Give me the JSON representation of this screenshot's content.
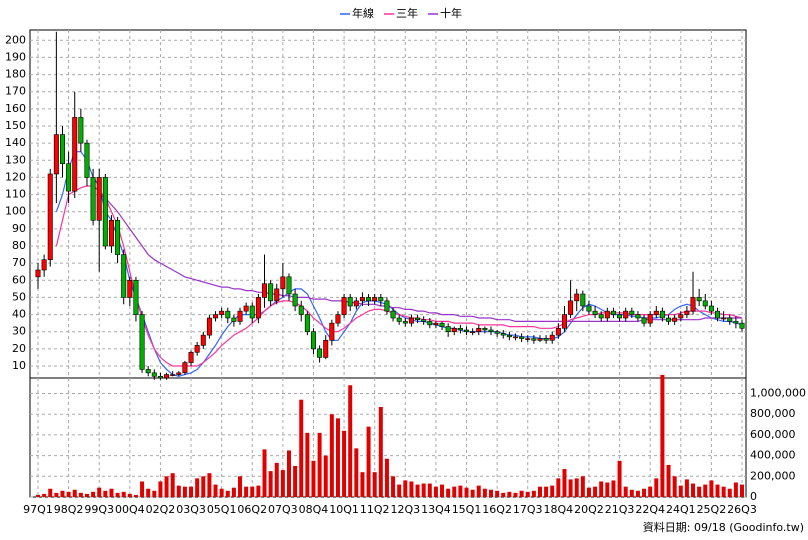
{
  "chart_data": {
    "type": "candlestick",
    "categories": [
      "97Q1",
      null,
      null,
      null,
      null,
      "98Q2",
      null,
      null,
      null,
      null,
      "99Q3",
      null,
      null,
      null,
      null,
      "00Q4",
      null,
      null,
      null,
      null,
      "02Q2",
      null,
      null,
      null,
      null,
      "03Q3",
      null,
      null,
      null,
      null,
      "05Q1",
      null,
      null,
      null,
      null,
      "06Q2",
      null,
      null,
      null,
      null,
      "07Q3",
      null,
      null,
      null,
      null,
      "08Q4",
      null,
      null,
      null,
      null,
      "10Q1",
      null,
      null,
      null,
      null,
      "11Q2",
      null,
      null,
      null,
      null,
      "12Q3",
      null,
      null,
      null,
      null,
      "13Q4",
      null,
      null,
      null,
      null,
      "15Q1",
      null,
      null,
      null,
      null,
      "16Q2",
      null,
      null,
      null,
      null,
      "17Q3",
      null,
      null,
      null,
      null,
      "18Q4",
      null,
      null,
      null,
      null,
      "20Q2",
      null,
      null,
      null,
      null,
      "21Q3",
      null,
      null,
      null,
      null,
      "22Q4",
      null,
      null,
      null,
      null,
      "24Q1",
      null,
      null,
      null,
      null,
      "25Q2",
      null,
      null,
      null,
      null,
      "26Q3"
    ],
    "open": [
      62,
      66,
      72,
      122,
      145,
      128,
      112,
      155,
      140,
      120,
      95,
      120,
      80,
      95,
      75,
      50,
      60,
      40,
      8,
      6,
      4,
      3,
      5,
      5,
      6,
      12,
      18,
      22,
      28,
      38,
      40,
      42,
      38,
      36,
      42,
      45,
      38,
      50,
      58,
      48,
      55,
      62,
      52,
      45,
      40,
      30,
      20,
      15,
      25,
      35,
      40,
      50,
      45,
      48,
      50,
      48,
      50,
      48,
      42,
      38,
      36,
      35,
      38,
      37,
      36,
      34,
      35,
      33,
      30,
      32,
      31,
      30,
      30,
      32,
      31,
      30,
      29,
      28,
      27,
      27,
      26,
      26,
      25,
      26,
      25,
      28,
      32,
      40,
      48,
      52,
      45,
      42,
      40,
      38,
      42,
      40,
      38,
      42,
      40,
      38,
      35,
      40,
      42,
      38,
      36,
      38,
      40,
      42,
      50,
      48,
      45,
      42,
      38,
      38,
      36,
      35
    ],
    "high": [
      70,
      75,
      125,
      205,
      150,
      135,
      170,
      160,
      142,
      125,
      125,
      122,
      98,
      97,
      78,
      62,
      62,
      42,
      10,
      8,
      6,
      6,
      7,
      7,
      13,
      19,
      24,
      30,
      40,
      42,
      44,
      44,
      40,
      44,
      47,
      47,
      52,
      75,
      60,
      58,
      70,
      64,
      55,
      48,
      42,
      32,
      22,
      28,
      37,
      42,
      52,
      52,
      50,
      53,
      52,
      52,
      52,
      50,
      44,
      40,
      38,
      40,
      40,
      39,
      38,
      36,
      36,
      35,
      33,
      34,
      33,
      32,
      34,
      33,
      33,
      31,
      31,
      30,
      29,
      29,
      28,
      28,
      28,
      28,
      30,
      35,
      45,
      60,
      55,
      54,
      48,
      45,
      42,
      44,
      44,
      42,
      44,
      44,
      42,
      40,
      42,
      45,
      44,
      40,
      40,
      42,
      45,
      65,
      55,
      52,
      48,
      44,
      42,
      40,
      39,
      37
    ],
    "low": [
      55,
      62,
      68,
      105,
      120,
      105,
      108,
      135,
      115,
      92,
      65,
      78,
      76,
      70,
      46,
      45,
      36,
      6,
      4,
      2,
      2,
      2,
      4,
      4,
      5,
      10,
      16,
      20,
      26,
      36,
      38,
      35,
      33,
      34,
      40,
      35,
      35,
      44,
      45,
      46,
      50,
      48,
      42,
      36,
      28,
      17,
      12,
      14,
      22,
      33,
      38,
      42,
      43,
      45,
      45,
      46,
      45,
      40,
      36,
      34,
      33,
      33,
      35,
      34,
      32,
      32,
      31,
      27,
      28,
      29,
      28,
      28,
      28,
      29,
      28,
      27,
      26,
      25,
      25,
      24,
      24,
      23,
      24,
      23,
      23,
      26,
      30,
      38,
      42,
      42,
      40,
      38,
      36,
      36,
      38,
      36,
      36,
      38,
      36,
      33,
      33,
      38,
      36,
      34,
      34,
      36,
      38,
      40,
      45,
      43,
      40,
      36,
      36,
      34,
      32,
      30
    ],
    "close": [
      66,
      72,
      122,
      145,
      128,
      112,
      155,
      140,
      120,
      95,
      120,
      80,
      95,
      75,
      50,
      60,
      40,
      8,
      6,
      4,
      3,
      5,
      5,
      6,
      12,
      18,
      22,
      28,
      38,
      40,
      42,
      38,
      36,
      42,
      45,
      38,
      50,
      58,
      48,
      55,
      62,
      52,
      45,
      40,
      30,
      20,
      15,
      25,
      35,
      40,
      50,
      45,
      48,
      50,
      48,
      50,
      48,
      42,
      38,
      36,
      35,
      38,
      37,
      36,
      34,
      35,
      33,
      30,
      32,
      31,
      30,
      30,
      32,
      31,
      30,
      29,
      28,
      27,
      27,
      26,
      26,
      25,
      26,
      25,
      28,
      32,
      40,
      48,
      52,
      45,
      42,
      40,
      38,
      42,
      40,
      38,
      42,
      40,
      38,
      35,
      40,
      42,
      38,
      36,
      38,
      40,
      42,
      50,
      48,
      45,
      42,
      38,
      38,
      36,
      35,
      32
    ],
    "up_color": "#ff0000",
    "down_color": "#00b000",
    "ylim": [
      3,
      206
    ],
    "yticks": [
      10,
      20,
      30,
      40,
      50,
      60,
      70,
      80,
      90,
      100,
      110,
      120,
      130,
      140,
      150,
      160,
      170,
      180,
      190,
      200
    ],
    "grid": true,
    "series": [
      {
        "name": "年線",
        "color": "#3366ff",
        "values": [
          null,
          null,
          null,
          100,
          110,
          125,
          135,
          135,
          130,
          120,
          115,
          100,
          95,
          85,
          75,
          60,
          50,
          40,
          30,
          20,
          12,
          8,
          5,
          4,
          5,
          6,
          8,
          12,
          17,
          22,
          28,
          33,
          37,
          40,
          40,
          40,
          40,
          42,
          45,
          48,
          50,
          53,
          55,
          55,
          52,
          45,
          38,
          30,
          25,
          25,
          30,
          35,
          42,
          47,
          48,
          48,
          47,
          46,
          43,
          40,
          38,
          37,
          36,
          36,
          35,
          34,
          33,
          32,
          32,
          31,
          30,
          30,
          30,
          30,
          30,
          30,
          29,
          28,
          28,
          27,
          27,
          27,
          26,
          26,
          26,
          27,
          30,
          35,
          40,
          44,
          46,
          45,
          43,
          41,
          40,
          40,
          40,
          39,
          39,
          38,
          38,
          38,
          39,
          40,
          43,
          45,
          46,
          45,
          42,
          40,
          38,
          37,
          36,
          36,
          35,
          34
        ]
      },
      {
        "name": "三年",
        "color": "#ff3399",
        "values": [
          null,
          null,
          null,
          80,
          95,
          110,
          112,
          114,
          115,
          115,
          112,
          108,
          100,
          92,
          80,
          65,
          50,
          38,
          28,
          20,
          15,
          12,
          10,
          10,
          10,
          10,
          10,
          12,
          15,
          18,
          22,
          25,
          28,
          30,
          32,
          35,
          38,
          42,
          45,
          47,
          48,
          48,
          47,
          45,
          42,
          38,
          35,
          32,
          30,
          30,
          32,
          35,
          38,
          40,
          42,
          43,
          43,
          42,
          41,
          40,
          39,
          38,
          38,
          37,
          37,
          36,
          36,
          36,
          35,
          35,
          35,
          35,
          34,
          34,
          34,
          34,
          34,
          33,
          33,
          33,
          33,
          33,
          32,
          32,
          32,
          33,
          35,
          37,
          38,
          39,
          40,
          40,
          41,
          41,
          41,
          41,
          41,
          40,
          40,
          40,
          40,
          40,
          40,
          40,
          40,
          41,
          42,
          42,
          42,
          42,
          41,
          41,
          40,
          40,
          39,
          38
        ]
      },
      {
        "name": "十年",
        "color": "#9933cc",
        "values": [
          null,
          null,
          null,
          null,
          null,
          null,
          null,
          null,
          null,
          null,
          110,
          108,
          104,
          100,
          95,
          90,
          85,
          80,
          75,
          72,
          70,
          68,
          66,
          64,
          62,
          61,
          60,
          59,
          58,
          57,
          56,
          56,
          55,
          55,
          54,
          54,
          53,
          53,
          52,
          52,
          51,
          51,
          50,
          50,
          50,
          49,
          49,
          49,
          48,
          48,
          48,
          47,
          47,
          46,
          46,
          46,
          45,
          45,
          44,
          44,
          43,
          43,
          42,
          42,
          41,
          41,
          40,
          40,
          40,
          39,
          39,
          39,
          38,
          38,
          38,
          37,
          37,
          37,
          36,
          36,
          36,
          36,
          36,
          36,
          36,
          36,
          36,
          36,
          36,
          36,
          36,
          36,
          36,
          36,
          36,
          36,
          36,
          36,
          36,
          37,
          37,
          37,
          37,
          37,
          37,
          37,
          37,
          37,
          37,
          38,
          38,
          38,
          38,
          38,
          38,
          38
        ]
      }
    ],
    "volume": {
      "color": "#e00000",
      "ylim": [
        0,
        1150000
      ],
      "yticks": [
        0,
        {
          "value": 200000,
          "label": "200,000"
        },
        {
          "value": 400000,
          "label": "400,000"
        },
        {
          "value": 600000,
          "label": "600,000"
        },
        {
          "value": 800000,
          "label": "800,000"
        },
        {
          "value": 1000000,
          "label": "1,000,000"
        }
      ],
      "values": [
        20000,
        30000,
        80000,
        40000,
        60000,
        50000,
        70000,
        40000,
        30000,
        50000,
        90000,
        60000,
        80000,
        40000,
        50000,
        30000,
        20000,
        150000,
        80000,
        60000,
        150000,
        200000,
        230000,
        110000,
        100000,
        100000,
        180000,
        200000,
        230000,
        120000,
        80000,
        60000,
        90000,
        200000,
        100000,
        100000,
        110000,
        460000,
        250000,
        330000,
        260000,
        450000,
        300000,
        940000,
        620000,
        350000,
        620000,
        400000,
        800000,
        760000,
        640000,
        1080000,
        470000,
        240000,
        680000,
        240000,
        870000,
        370000,
        200000,
        120000,
        160000,
        150000,
        120000,
        130000,
        130000,
        100000,
        120000,
        80000,
        100000,
        110000,
        90000,
        70000,
        110000,
        80000,
        70000,
        60000,
        40000,
        50000,
        40000,
        60000,
        50000,
        60000,
        100000,
        100000,
        110000,
        180000,
        270000,
        170000,
        180000,
        200000,
        90000,
        100000,
        150000,
        140000,
        160000,
        350000,
        100000,
        70000,
        60000,
        80000,
        100000,
        180000,
        1180000,
        310000,
        200000,
        110000,
        170000,
        130000,
        100000,
        120000,
        160000,
        120000,
        100000,
        80000,
        140000,
        120000
      ]
    },
    "source": "資料日期: 09/18 (Goodinfo.tw)"
  }
}
